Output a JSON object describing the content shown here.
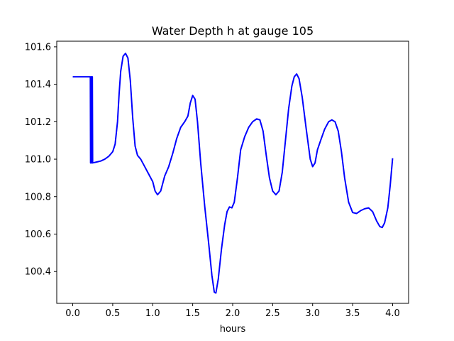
{
  "chart_data": {
    "type": "line",
    "title": "Water Depth h at gauge 105",
    "xlabel": "hours",
    "ylabel": "",
    "xlim": [
      -0.2,
      4.2
    ],
    "ylim": [
      100.23,
      101.63
    ],
    "xticks": [
      0.0,
      0.5,
      1.0,
      1.5,
      2.0,
      2.5,
      3.0,
      3.5,
      4.0
    ],
    "xtick_labels": [
      "0.0",
      "0.5",
      "1.0",
      "1.5",
      "2.0",
      "2.5",
      "3.0",
      "3.5",
      "4.0"
    ],
    "yticks": [
      100.4,
      100.6,
      100.8,
      101.0,
      101.2,
      101.4,
      101.6
    ],
    "ytick_labels": [
      "100.4",
      "100.6",
      "100.8",
      "101.0",
      "101.2",
      "101.4",
      "101.6"
    ],
    "grid": false,
    "series": [
      {
        "color": "#0000ff",
        "points": [
          [
            0.0,
            101.44
          ],
          [
            0.15,
            101.44
          ],
          [
            0.215,
            101.44
          ],
          [
            0.22,
            101.44
          ],
          [
            0.223,
            100.98
          ],
          [
            0.226,
            101.44
          ],
          [
            0.232,
            101.44
          ],
          [
            0.236,
            100.98
          ],
          [
            0.239,
            101.44
          ],
          [
            0.245,
            101.44
          ],
          [
            0.249,
            100.98
          ],
          [
            0.3,
            100.985
          ],
          [
            0.35,
            100.99
          ],
          [
            0.4,
            101.0
          ],
          [
            0.45,
            101.015
          ],
          [
            0.5,
            101.04
          ],
          [
            0.53,
            101.08
          ],
          [
            0.56,
            101.2
          ],
          [
            0.58,
            101.35
          ],
          [
            0.6,
            101.47
          ],
          [
            0.63,
            101.55
          ],
          [
            0.66,
            101.565
          ],
          [
            0.69,
            101.54
          ],
          [
            0.72,
            101.42
          ],
          [
            0.75,
            101.22
          ],
          [
            0.78,
            101.07
          ],
          [
            0.81,
            101.02
          ],
          [
            0.85,
            101.0
          ],
          [
            0.9,
            100.96
          ],
          [
            0.95,
            100.92
          ],
          [
            1.0,
            100.88
          ],
          [
            1.03,
            100.83
          ],
          [
            1.06,
            100.81
          ],
          [
            1.1,
            100.83
          ],
          [
            1.15,
            100.91
          ],
          [
            1.2,
            100.96
          ],
          [
            1.25,
            101.03
          ],
          [
            1.3,
            101.11
          ],
          [
            1.35,
            101.17
          ],
          [
            1.4,
            101.2
          ],
          [
            1.44,
            101.23
          ],
          [
            1.47,
            101.3
          ],
          [
            1.5,
            101.34
          ],
          [
            1.53,
            101.32
          ],
          [
            1.56,
            101.2
          ],
          [
            1.6,
            100.98
          ],
          [
            1.65,
            100.75
          ],
          [
            1.7,
            100.55
          ],
          [
            1.74,
            100.38
          ],
          [
            1.77,
            100.29
          ],
          [
            1.79,
            100.285
          ],
          [
            1.82,
            100.36
          ],
          [
            1.86,
            100.52
          ],
          [
            1.9,
            100.65
          ],
          [
            1.93,
            100.72
          ],
          [
            1.96,
            100.745
          ],
          [
            1.99,
            100.74
          ],
          [
            2.02,
            100.77
          ],
          [
            2.06,
            100.9
          ],
          [
            2.1,
            101.05
          ],
          [
            2.15,
            101.12
          ],
          [
            2.2,
            101.17
          ],
          [
            2.25,
            101.2
          ],
          [
            2.3,
            101.215
          ],
          [
            2.34,
            101.21
          ],
          [
            2.38,
            101.15
          ],
          [
            2.42,
            101.02
          ],
          [
            2.46,
            100.9
          ],
          [
            2.5,
            100.83
          ],
          [
            2.54,
            100.81
          ],
          [
            2.58,
            100.83
          ],
          [
            2.62,
            100.93
          ],
          [
            2.66,
            101.1
          ],
          [
            2.7,
            101.27
          ],
          [
            2.74,
            101.39
          ],
          [
            2.77,
            101.44
          ],
          [
            2.8,
            101.455
          ],
          [
            2.83,
            101.43
          ],
          [
            2.87,
            101.33
          ],
          [
            2.92,
            101.16
          ],
          [
            2.97,
            101.0
          ],
          [
            3.0,
            100.96
          ],
          [
            3.03,
            100.98
          ],
          [
            3.06,
            101.05
          ],
          [
            3.1,
            101.1
          ],
          [
            3.15,
            101.16
          ],
          [
            3.2,
            101.2
          ],
          [
            3.24,
            101.21
          ],
          [
            3.28,
            101.2
          ],
          [
            3.32,
            101.15
          ],
          [
            3.36,
            101.04
          ],
          [
            3.4,
            100.9
          ],
          [
            3.45,
            100.77
          ],
          [
            3.5,
            100.715
          ],
          [
            3.55,
            100.71
          ],
          [
            3.6,
            100.725
          ],
          [
            3.65,
            100.735
          ],
          [
            3.7,
            100.74
          ],
          [
            3.75,
            100.72
          ],
          [
            3.8,
            100.67
          ],
          [
            3.84,
            100.64
          ],
          [
            3.87,
            100.635
          ],
          [
            3.9,
            100.66
          ],
          [
            3.94,
            100.74
          ],
          [
            3.97,
            100.86
          ],
          [
            4.0,
            101.005
          ]
        ]
      }
    ]
  }
}
